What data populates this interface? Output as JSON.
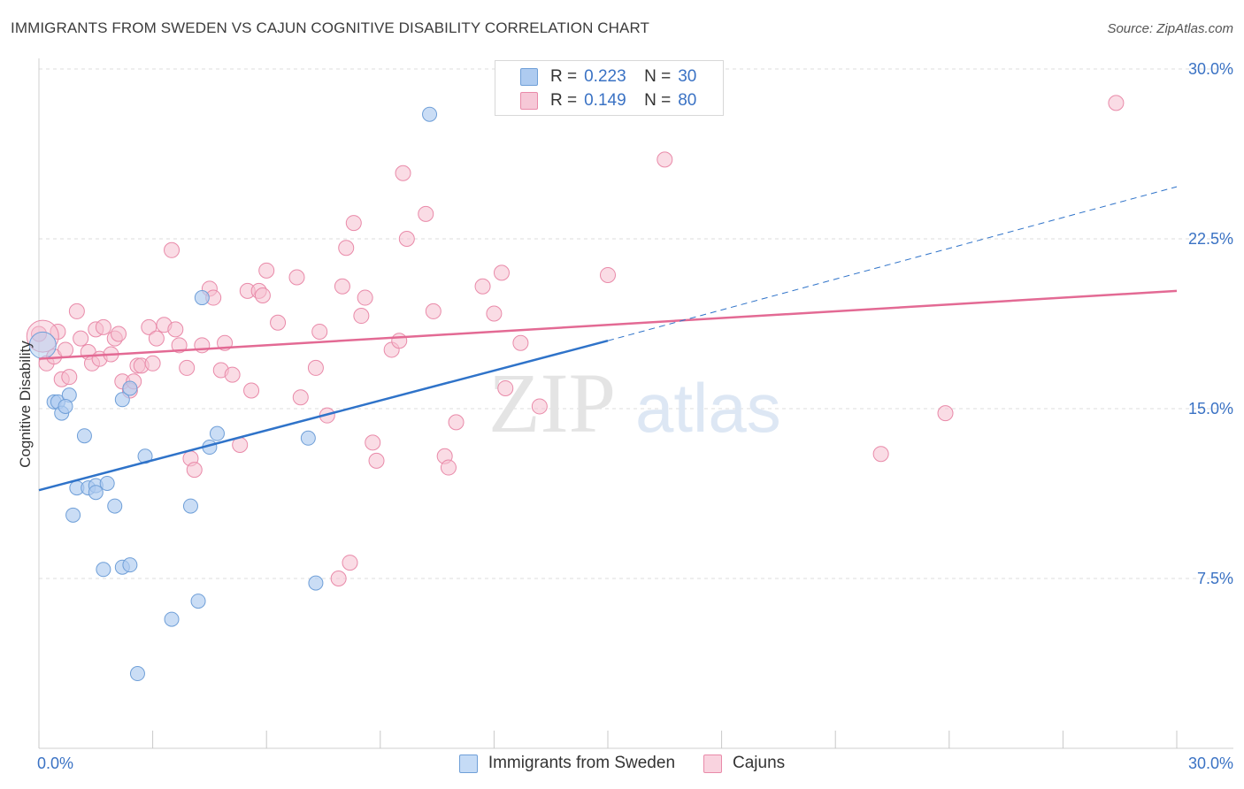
{
  "title": "IMMIGRANTS FROM SWEDEN VS CAJUN COGNITIVE DISABILITY CORRELATION CHART",
  "source": "Source: ZipAtlas.com",
  "watermark": {
    "zip": "ZIP",
    "atlas": "atlas"
  },
  "legend": {
    "r_label": "R =",
    "n_label": "N =",
    "rows": [
      {
        "r": "0.223",
        "n": "30"
      },
      {
        "r": "0.149",
        "n": "80"
      }
    ]
  },
  "colors": {
    "blue_fill": "#aecbf0",
    "blue_stroke": "#6f9fd8",
    "blue_line": "#2f73c9",
    "pink_fill": "#f6bfd0",
    "pink_stroke": "#e98aa9",
    "pink_line": "#e36a94",
    "tick_text": "#3a72c4",
    "grid": "#dddddd"
  },
  "chart_data": {
    "type": "scatter",
    "title": "IMMIGRANTS FROM SWEDEN VS CAJUN COGNITIVE DISABILITY CORRELATION CHART",
    "ylabel": "Cognitive Disability",
    "xlabel": "",
    "xlim": [
      0,
      30
    ],
    "ylim": [
      0,
      31.5
    ],
    "x_tick_labels": [
      "0.0%",
      "30.0%"
    ],
    "y_ticks": [
      7.5,
      15.0,
      22.5,
      30.0
    ],
    "y_tick_labels": [
      "7.5%",
      "15.0%",
      "22.5%",
      "30.0%"
    ],
    "grid": true,
    "legend_position": "top-center",
    "series": [
      {
        "name": "Immigrants from Sweden",
        "color": "#aecbf0",
        "r": 0.223,
        "n": 30,
        "trend": {
          "x": [
            0,
            15
          ],
          "y": [
            11.4,
            18.0
          ]
        },
        "trend_extension": {
          "x": [
            15,
            30
          ],
          "y": [
            18.0,
            24.8
          ]
        },
        "points": [
          [
            0.1,
            17.8
          ],
          [
            0.4,
            15.3
          ],
          [
            0.5,
            15.3
          ],
          [
            0.8,
            15.6
          ],
          [
            0.6,
            14.8
          ],
          [
            0.7,
            15.1
          ],
          [
            1.2,
            13.8
          ],
          [
            0.9,
            10.3
          ],
          [
            1.0,
            11.5
          ],
          [
            1.3,
            11.5
          ],
          [
            1.5,
            11.6
          ],
          [
            1.5,
            11.3
          ],
          [
            1.8,
            11.7
          ],
          [
            2.0,
            10.7
          ],
          [
            2.2,
            15.4
          ],
          [
            2.4,
            15.9
          ],
          [
            1.7,
            7.9
          ],
          [
            2.2,
            8.0
          ],
          [
            2.4,
            8.1
          ],
          [
            2.8,
            12.9
          ],
          [
            3.5,
            5.7
          ],
          [
            4.0,
            10.7
          ],
          [
            4.2,
            6.5
          ],
          [
            4.3,
            19.9
          ],
          [
            4.5,
            13.3
          ],
          [
            4.7,
            13.9
          ],
          [
            7.1,
            13.7
          ],
          [
            7.3,
            7.3
          ],
          [
            2.6,
            3.3
          ],
          [
            10.3,
            28.0
          ]
        ]
      },
      {
        "name": "Cajuns",
        "color": "#f6bfd0",
        "r": 0.149,
        "n": 80,
        "trend": {
          "x": [
            0,
            30
          ],
          "y": [
            17.2,
            20.2
          ]
        },
        "points": [
          [
            0.0,
            18.3
          ],
          [
            0.2,
            17.0
          ],
          [
            0.4,
            17.3
          ],
          [
            0.5,
            18.4
          ],
          [
            0.6,
            16.3
          ],
          [
            0.7,
            17.6
          ],
          [
            0.8,
            16.4
          ],
          [
            1.0,
            19.3
          ],
          [
            1.1,
            18.1
          ],
          [
            1.3,
            17.5
          ],
          [
            1.4,
            17.0
          ],
          [
            1.5,
            18.5
          ],
          [
            1.6,
            17.2
          ],
          [
            1.7,
            18.6
          ],
          [
            1.9,
            17.4
          ],
          [
            2.0,
            18.1
          ],
          [
            2.1,
            18.3
          ],
          [
            2.2,
            16.2
          ],
          [
            2.4,
            15.8
          ],
          [
            2.5,
            16.2
          ],
          [
            2.6,
            16.9
          ],
          [
            2.7,
            16.9
          ],
          [
            2.9,
            18.6
          ],
          [
            3.0,
            17.0
          ],
          [
            3.1,
            18.1
          ],
          [
            3.3,
            18.7
          ],
          [
            3.5,
            22.0
          ],
          [
            3.6,
            18.5
          ],
          [
            3.7,
            17.8
          ],
          [
            3.9,
            16.8
          ],
          [
            4.0,
            12.8
          ],
          [
            4.1,
            12.3
          ],
          [
            4.3,
            17.8
          ],
          [
            4.5,
            20.3
          ],
          [
            4.6,
            19.9
          ],
          [
            4.8,
            16.7
          ],
          [
            4.9,
            17.9
          ],
          [
            5.1,
            16.5
          ],
          [
            5.3,
            13.4
          ],
          [
            5.5,
            20.2
          ],
          [
            5.6,
            15.8
          ],
          [
            5.8,
            20.2
          ],
          [
            5.9,
            20.0
          ],
          [
            6.0,
            21.1
          ],
          [
            6.3,
            18.8
          ],
          [
            6.8,
            20.8
          ],
          [
            6.9,
            15.5
          ],
          [
            7.3,
            16.8
          ],
          [
            7.4,
            18.4
          ],
          [
            7.6,
            14.7
          ],
          [
            8.0,
            20.4
          ],
          [
            8.1,
            22.1
          ],
          [
            8.3,
            23.2
          ],
          [
            8.5,
            19.1
          ],
          [
            8.6,
            19.9
          ],
          [
            8.8,
            13.5
          ],
          [
            8.9,
            12.7
          ],
          [
            9.3,
            17.6
          ],
          [
            9.5,
            18.0
          ],
          [
            9.6,
            25.4
          ],
          [
            9.7,
            22.5
          ],
          [
            10.2,
            23.6
          ],
          [
            10.4,
            19.3
          ],
          [
            10.7,
            12.9
          ],
          [
            10.8,
            12.4
          ],
          [
            11.0,
            14.4
          ],
          [
            11.7,
            20.4
          ],
          [
            12.0,
            19.2
          ],
          [
            12.2,
            21.0
          ],
          [
            12.3,
            15.9
          ],
          [
            12.7,
            17.9
          ],
          [
            13.2,
            15.1
          ],
          [
            15.0,
            20.9
          ],
          [
            16.5,
            26.0
          ],
          [
            22.2,
            13.0
          ],
          [
            23.9,
            14.8
          ],
          [
            28.4,
            28.5
          ],
          [
            8.2,
            8.2
          ],
          [
            7.9,
            7.5
          ],
          [
            0.1,
            18.2
          ]
        ]
      }
    ]
  }
}
